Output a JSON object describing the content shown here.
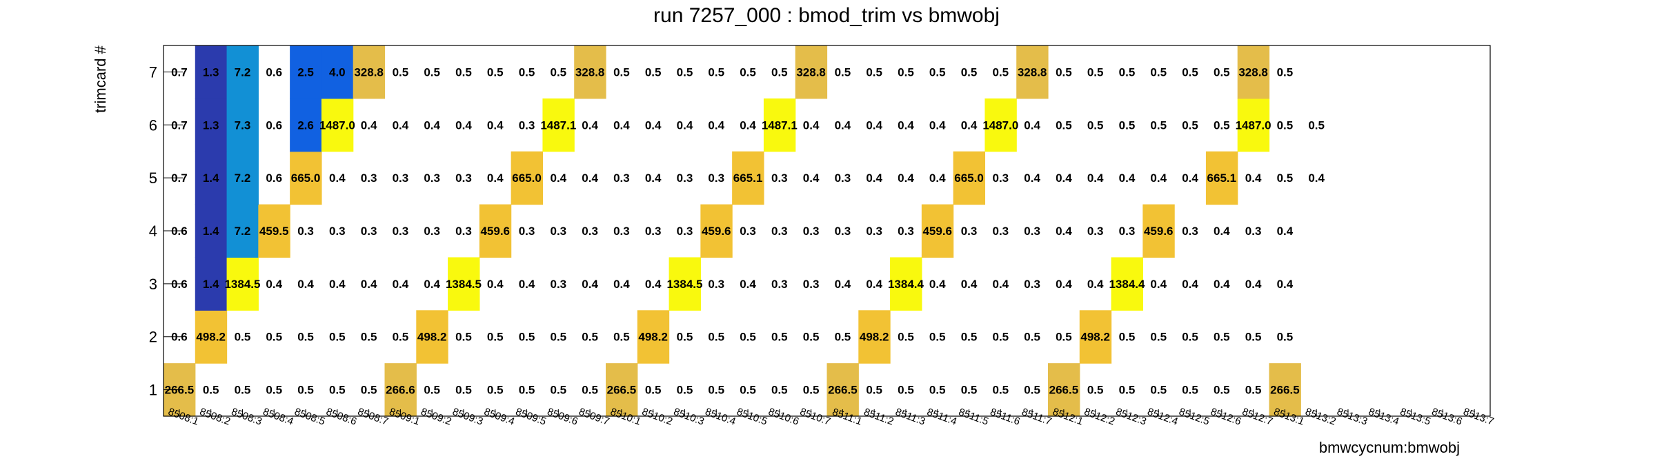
{
  "chart_data": {
    "type": "heatmap",
    "title": "run 7257_000 : bmod_trim vs bmwobj",
    "xlabel": "bmwcycnum:bmwobj",
    "ylabel": "trimcard #",
    "x_categories": [
      "8508:1",
      "8508:2",
      "8508:3",
      "8508:4",
      "8508:5",
      "8508:6",
      "8508:7",
      "8509:1",
      "8509:2",
      "8509:3",
      "8509:4",
      "8509:5",
      "8509:6",
      "8509:7",
      "8510:1",
      "8510:2",
      "8510:3",
      "8510:4",
      "8510:5",
      "8510:6",
      "8510:7",
      "8511:1",
      "8511:2",
      "8511:3",
      "8511:4",
      "8511:5",
      "8511:6",
      "8511:7",
      "8512:1",
      "8512:2",
      "8512:3",
      "8512:4",
      "8512:5",
      "8512:6",
      "8512:7",
      "8513:1",
      "8513:2",
      "8513:3",
      "8513:4",
      "8513:5",
      "8513:6",
      "8513:7"
    ],
    "y_categories": [
      1,
      2,
      3,
      4,
      5,
      6,
      7
    ],
    "grid": false,
    "colors": {
      "low": "#f9f90e",
      "mid": "#f2c234",
      "high": "#e4bd4a",
      "blue_deep": "#2b3bad",
      "blue_mid": "#1161e1",
      "blue_light": "#1290d5"
    },
    "values": [
      [
        "266.5",
        "0.5",
        "0.5",
        "0.5",
        "0.5",
        "0.5",
        "0.5",
        "266.6",
        "0.5",
        "0.5",
        "0.5",
        "0.5",
        "0.5",
        "0.5",
        "266.5",
        "0.5",
        "0.5",
        "0.5",
        "0.5",
        "0.5",
        "0.5",
        "266.5",
        "0.5",
        "0.5",
        "0.5",
        "0.5",
        "0.5",
        "0.5",
        "266.5",
        "0.5",
        "0.5",
        "0.5",
        "0.5",
        "0.5",
        "0.5",
        "266.5",
        "",
        "",
        "",
        "",
        "",
        ""
      ],
      [
        "0.6",
        "498.2",
        "0.5",
        "0.5",
        "0.5",
        "0.5",
        "0.5",
        "0.5",
        "498.2",
        "0.5",
        "0.5",
        "0.5",
        "0.5",
        "0.5",
        "0.5",
        "498.2",
        "0.5",
        "0.5",
        "0.5",
        "0.5",
        "0.5",
        "0.5",
        "498.2",
        "0.5",
        "0.5",
        "0.5",
        "0.5",
        "0.5",
        "0.5",
        "498.2",
        "0.5",
        "0.5",
        "0.5",
        "0.5",
        "0.5",
        "0.5",
        "",
        "",
        "",
        "",
        "",
        ""
      ],
      [
        "0.6",
        "1.4",
        "1384.5",
        "0.4",
        "0.4",
        "0.4",
        "0.4",
        "0.4",
        "0.4",
        "1384.5",
        "0.4",
        "0.4",
        "0.3",
        "0.4",
        "0.4",
        "0.4",
        "1384.5",
        "0.3",
        "0.4",
        "0.3",
        "0.3",
        "0.4",
        "0.4",
        "1384.4",
        "0.4",
        "0.4",
        "0.4",
        "0.3",
        "0.4",
        "0.4",
        "1384.4",
        "0.4",
        "0.4",
        "0.4",
        "0.4",
        "0.4",
        "",
        "",
        "",
        "",
        "",
        ""
      ],
      [
        "0.6",
        "1.4",
        "7.2",
        "459.5",
        "0.3",
        "0.3",
        "0.3",
        "0.3",
        "0.3",
        "0.3",
        "459.6",
        "0.3",
        "0.3",
        "0.3",
        "0.3",
        "0.3",
        "0.3",
        "459.6",
        "0.3",
        "0.3",
        "0.3",
        "0.3",
        "0.3",
        "0.3",
        "459.6",
        "0.3",
        "0.3",
        "0.3",
        "0.4",
        "0.3",
        "0.3",
        "459.6",
        "0.3",
        "0.4",
        "0.3",
        "0.4",
        "",
        "",
        "",
        "",
        "",
        ""
      ],
      [
        "0.7",
        "1.4",
        "7.2",
        "0.6",
        "665.0",
        "0.4",
        "0.3",
        "0.3",
        "0.3",
        "0.3",
        "0.4",
        "665.0",
        "0.4",
        "0.4",
        "0.3",
        "0.4",
        "0.3",
        "0.3",
        "665.1",
        "0.3",
        "0.4",
        "0.3",
        "0.4",
        "0.4",
        "0.4",
        "665.0",
        "0.3",
        "0.4",
        "0.4",
        "0.4",
        "0.4",
        "0.4",
        "0.4",
        "665.1",
        "0.4",
        "0.5",
        "0.4",
        "",
        "",
        "",
        "",
        ""
      ],
      [
        "0.7",
        "1.3",
        "7.3",
        "0.6",
        "2.6",
        "1487.0",
        "0.4",
        "0.4",
        "0.4",
        "0.4",
        "0.4",
        "0.3",
        "1487.1",
        "0.4",
        "0.4",
        "0.4",
        "0.4",
        "0.4",
        "0.4",
        "1487.1",
        "0.4",
        "0.4",
        "0.4",
        "0.4",
        "0.4",
        "0.4",
        "1487.0",
        "0.4",
        "0.5",
        "0.5",
        "0.5",
        "0.5",
        "0.5",
        "0.5",
        "1487.0",
        "0.5",
        "0.5",
        "",
        "",
        "",
        "",
        ""
      ],
      [
        "0.7",
        "1.3",
        "7.2",
        "0.6",
        "2.5",
        "4.0",
        "328.8",
        "0.5",
        "0.5",
        "0.5",
        "0.5",
        "0.5",
        "0.5",
        "328.8",
        "0.5",
        "0.5",
        "0.5",
        "0.5",
        "0.5",
        "0.5",
        "328.8",
        "0.5",
        "0.5",
        "0.5",
        "0.5",
        "0.5",
        "0.5",
        "328.8",
        "0.5",
        "0.5",
        "0.5",
        "0.5",
        "0.5",
        "0.5",
        "328.8",
        "0.5",
        "",
        "",
        "",
        "",
        "",
        ""
      ]
    ]
  }
}
